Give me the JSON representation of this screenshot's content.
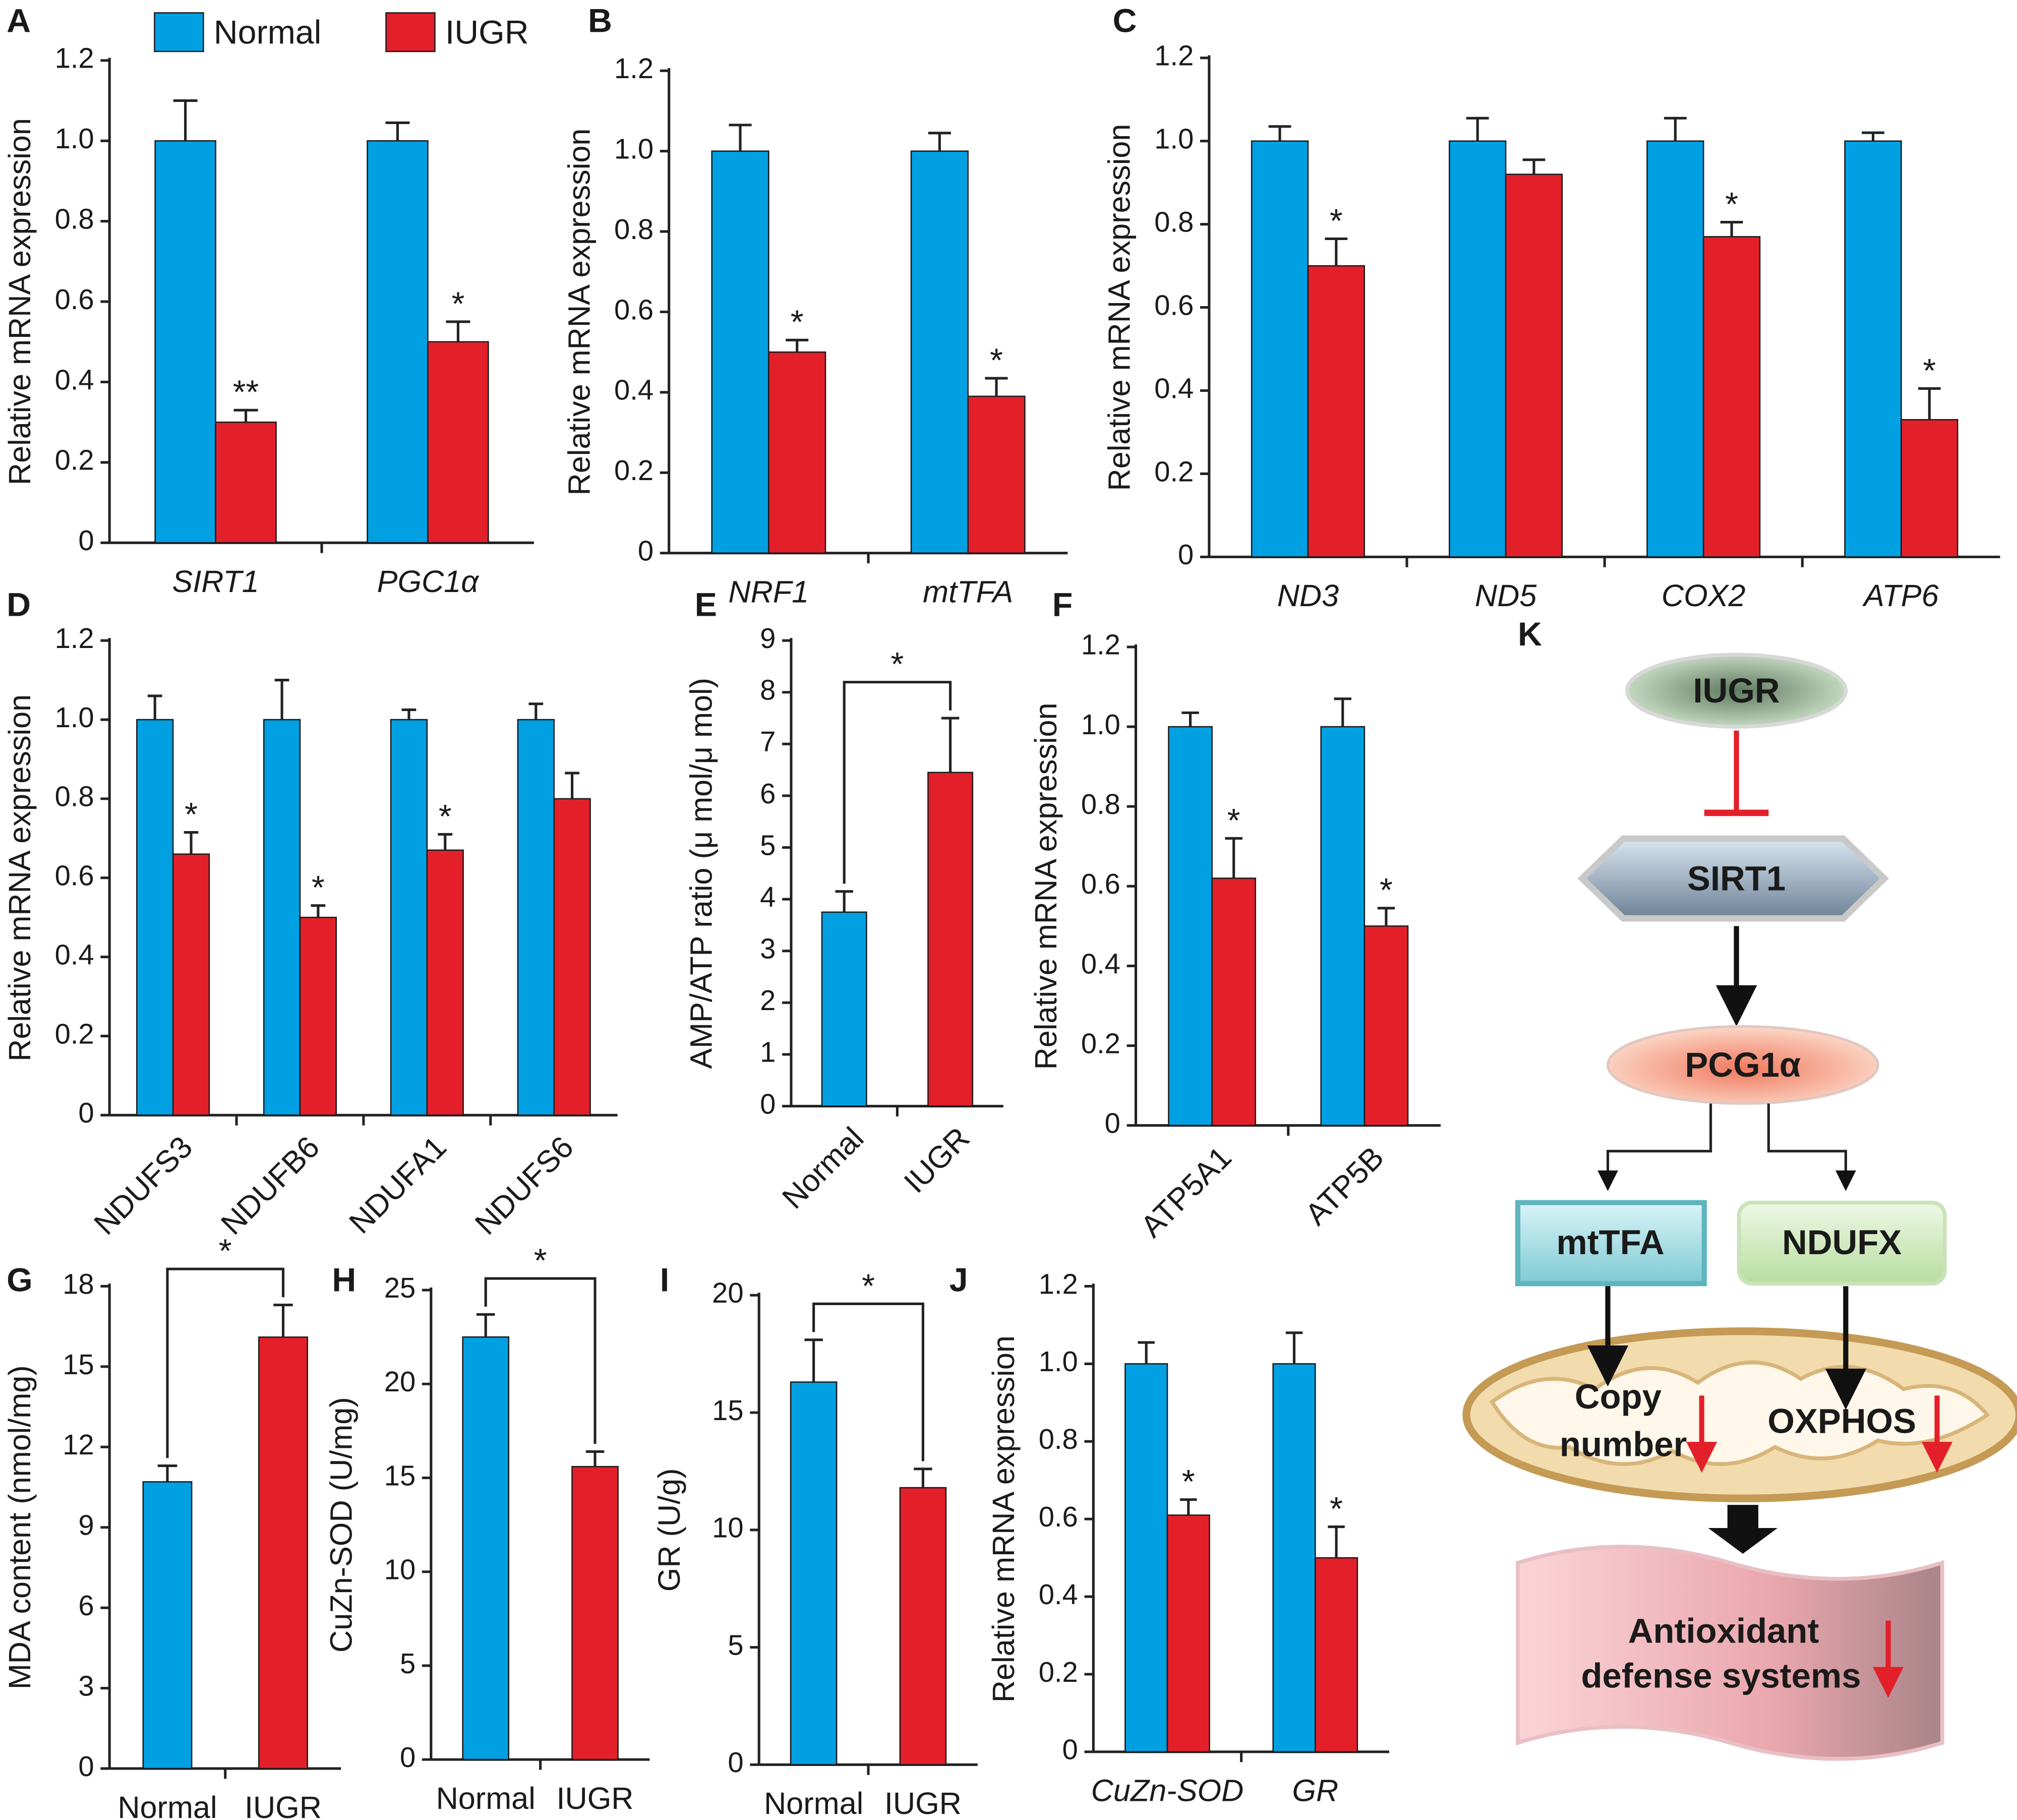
{
  "chart_data": [
    {
      "type": "bar",
      "letter": "A",
      "ylabel": "Relative mRNA expression",
      "categories": [
        "SIRT1",
        "PGC1α"
      ],
      "italic": true,
      "legend": true,
      "series": [
        {
          "name": "Normal",
          "color": "#00a0e3",
          "values": [
            1.0,
            1.0
          ],
          "errors": [
            0.1,
            0.045
          ]
        },
        {
          "name": "IUGR",
          "color": "#e3202a",
          "values": [
            0.3,
            0.5
          ],
          "errors": [
            0.03,
            0.05
          ]
        }
      ],
      "significance": [
        "**",
        "*"
      ],
      "ylim": [
        0,
        1.2
      ],
      "yticks": [
        0,
        0.2,
        0.4,
        0.6,
        0.8,
        {
          "value": 1,
          "label": "1.0"
        },
        1.2
      ]
    },
    {
      "type": "bar",
      "letter": "B",
      "ylabel": "Relative mRNA expression",
      "categories": [
        "NRF1",
        "mtTFA"
      ],
      "italic": true,
      "series": [
        {
          "color": "#00a0e3",
          "values": [
            1.0,
            1.0
          ],
          "errors": [
            0.065,
            0.045
          ]
        },
        {
          "color": "#e3202a",
          "values": [
            0.5,
            0.39
          ],
          "errors": [
            0.03,
            0.045
          ]
        }
      ],
      "significance": [
        "*",
        "*"
      ],
      "ylim": [
        0,
        1.2
      ],
      "yticks": [
        0,
        0.2,
        0.4,
        0.6,
        0.8,
        {
          "value": 1,
          "label": "1.0"
        },
        1.2
      ]
    },
    {
      "type": "bar",
      "letter": "C",
      "ylabel": "Relative mRNA expression",
      "categories": [
        "ND3",
        "ND5",
        "COX2",
        "ATP6"
      ],
      "italic": true,
      "series": [
        {
          "color": "#00a0e3",
          "values": [
            1.0,
            1.0,
            1.0,
            1.0
          ],
          "errors": [
            0.035,
            0.055,
            0.055,
            0.02
          ]
        },
        {
          "color": "#e3202a",
          "values": [
            0.7,
            0.92,
            0.77,
            0.33
          ],
          "errors": [
            0.065,
            0.035,
            0.035,
            0.075
          ]
        }
      ],
      "significance": [
        "*",
        null,
        "*",
        "*"
      ],
      "ylim": [
        0,
        1.2
      ],
      "yticks": [
        0,
        0.2,
        0.4,
        0.6,
        0.8,
        {
          "value": 1,
          "label": "1.0"
        },
        1.2
      ]
    },
    {
      "type": "bar",
      "letter": "D",
      "ylabel": "Relative mRNA expression",
      "categories": [
        "NDUFS3",
        "NDUFB6",
        "NDUFA1",
        "NDUFS6"
      ],
      "rotate_labels": true,
      "series": [
        {
          "color": "#00a0e3",
          "values": [
            1.0,
            1.0,
            1.0,
            1.0
          ],
          "errors": [
            0.06,
            0.1,
            0.025,
            0.04
          ]
        },
        {
          "color": "#e3202a",
          "values": [
            0.66,
            0.5,
            0.67,
            0.8
          ],
          "errors": [
            0.055,
            0.03,
            0.04,
            0.065
          ]
        }
      ],
      "significance": [
        "*",
        "*",
        "*",
        null
      ],
      "ylim": [
        0,
        1.2
      ],
      "yticks": [
        0,
        0.2,
        0.4,
        0.6,
        0.8,
        {
          "value": 1,
          "label": "1.0"
        },
        1.2
      ]
    },
    {
      "type": "bar",
      "letter": "E",
      "ylabel": "AMP/ATP ratio (μ mol/μ mol)",
      "categories": [
        "Normal",
        "IUGR"
      ],
      "rotate_labels": true,
      "values": [
        3.75,
        6.45
      ],
      "errors": [
        0.4,
        1.05
      ],
      "colors": [
        "#00a0e3",
        "#e3202a"
      ],
      "bracket": "*",
      "ylim": [
        0,
        9
      ],
      "yticks": [
        0,
        1,
        2,
        3,
        4,
        5,
        6,
        7,
        8,
        9
      ]
    },
    {
      "type": "bar",
      "letter": "F",
      "ylabel": "Relative mRNA expression",
      "categories": [
        "ATP5A1",
        "ATP5B"
      ],
      "rotate_labels": true,
      "series": [
        {
          "color": "#00a0e3",
          "values": [
            1.0,
            1.0
          ],
          "errors": [
            0.035,
            0.07
          ]
        },
        {
          "color": "#e3202a",
          "values": [
            0.62,
            0.5
          ],
          "errors": [
            0.1,
            0.045
          ]
        }
      ],
      "significance": [
        "*",
        "*"
      ],
      "ylim": [
        0,
        1.2
      ],
      "yticks": [
        0,
        0.2,
        0.4,
        0.6,
        0.8,
        {
          "value": 1,
          "label": "1.0"
        },
        1.2
      ]
    },
    {
      "type": "bar",
      "letter": "G",
      "ylabel": "MDA content (nmol/mg)",
      "categories": [
        "Normal",
        "IUGR"
      ],
      "values": [
        10.7,
        16.1
      ],
      "errors": [
        0.6,
        1.2
      ],
      "colors": [
        "#00a0e3",
        "#e3202a"
      ],
      "bracket": "*",
      "ylim": [
        0,
        18
      ],
      "yticks": [
        0,
        3,
        6,
        9,
        12,
        15,
        18
      ]
    },
    {
      "type": "bar",
      "letter": "H",
      "ylabel": "CuZn-SOD (U/mg)",
      "categories": [
        "Normal",
        "IUGR"
      ],
      "values": [
        22.5,
        15.6
      ],
      "errors": [
        1.2,
        0.8
      ],
      "colors": [
        "#00a0e3",
        "#e3202a"
      ],
      "bracket": "*",
      "ylim": [
        0,
        25
      ],
      "yticks": [
        0,
        5,
        10,
        15,
        20,
        25
      ]
    },
    {
      "type": "bar",
      "letter": "I",
      "ylabel": "GR (U/g)",
      "categories": [
        "Normal",
        "IUGR"
      ],
      "values": [
        16.3,
        11.8
      ],
      "errors": [
        1.8,
        0.8
      ],
      "colors": [
        "#00a0e3",
        "#e3202a"
      ],
      "bracket": "*",
      "ylim": [
        0,
        20
      ],
      "yticks": [
        0,
        5,
        10,
        15,
        20
      ]
    },
    {
      "type": "bar",
      "letter": "J",
      "ylabel": "Relative mRNA expression",
      "categories": [
        "CuZn-SOD",
        "GR"
      ],
      "italic": true,
      "series": [
        {
          "color": "#00a0e3",
          "values": [
            1.0,
            1.0
          ],
          "errors": [
            0.055,
            0.08
          ]
        },
        {
          "color": "#e3202a",
          "values": [
            0.61,
            0.5
          ],
          "errors": [
            0.04,
            0.08
          ]
        }
      ],
      "significance": [
        "*",
        "*"
      ],
      "ylim": [
        0,
        1.2
      ],
      "yticks": [
        0,
        0.2,
        0.4,
        0.6,
        0.8,
        {
          "value": 1,
          "label": "1.0"
        },
        1.2
      ]
    }
  ],
  "diagram": {
    "letter": "K",
    "nodes": {
      "iugr": "IUGR",
      "sirt1": "SIRT1",
      "pgc": "PCG1α",
      "mttfa": "mtTFA",
      "ndufx": "NDUFX",
      "copy": [
        "Copy",
        "number"
      ],
      "oxphos": "OXPHOS",
      "antioxidant": [
        "Antioxidant",
        "defense systems"
      ]
    }
  }
}
